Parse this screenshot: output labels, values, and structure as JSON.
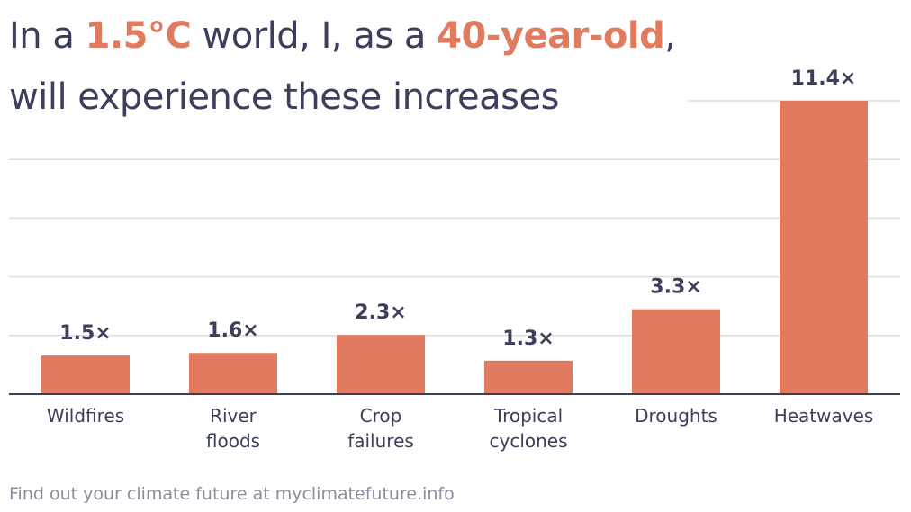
{
  "title": {
    "part1": "In a ",
    "highlight1": "1.5°C",
    "part2": " world, I, as a ",
    "highlight2": "40-year-old",
    "part3": ",",
    "line2": "will experience these increases"
  },
  "footer": "Find out your climate future at myclimatefuture.info",
  "colors": {
    "bar": "#e07b5f",
    "text": "#3b3f5c",
    "grid": "#dddddd",
    "axis": "#3b3f5c",
    "footer": "#8a8ca0"
  },
  "chart_data": {
    "type": "bar",
    "categories": [
      [
        "Wildfires"
      ],
      [
        "River",
        "floods"
      ],
      [
        "Crop",
        "failures"
      ],
      [
        "Tropical",
        "cyclones"
      ],
      [
        "Droughts"
      ],
      [
        "Heatwaves"
      ]
    ],
    "values": [
      1.5,
      1.6,
      2.3,
      1.3,
      3.3,
      11.4
    ],
    "labels": [
      "1.5×",
      "1.6×",
      "2.3×",
      "1.3×",
      "3.3×",
      "11.4×"
    ],
    "ylim": [
      0,
      11.4
    ],
    "grid": true,
    "xlabel": "",
    "ylabel": ""
  }
}
